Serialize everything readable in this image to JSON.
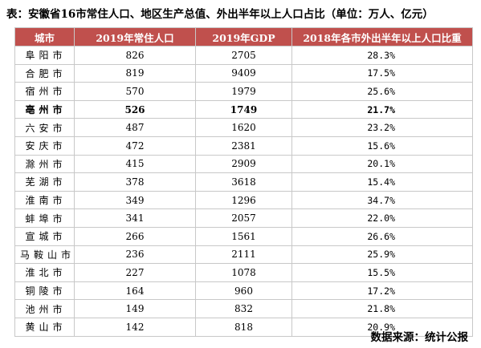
{
  "title": "表：安徽省16市常住人口、地区生产总值、外出半年以上人口占比（单位：万人、亿元）",
  "headers": [
    "城市",
    "2019年常住人口",
    "2019年GDP",
    "2018年各市外出半年以上人口比重"
  ],
  "rows": [
    {
      "city": "阜阳市",
      "population": "826",
      "gdp": "2705",
      "ratio": "28.3%"
    },
    {
      "city": "合肥市",
      "population": "819",
      "gdp": "9409",
      "ratio": "17.5%"
    },
    {
      "city": "宿州市",
      "population": "570",
      "gdp": "1979",
      "ratio": "25.6%"
    },
    {
      "city": "亳州市",
      "population": "526",
      "gdp": "1749",
      "ratio": "21.7%"
    },
    {
      "city": "六安市",
      "population": "487",
      "gdp": "1620",
      "ratio": "23.2%"
    },
    {
      "city": "安庆市",
      "population": "472",
      "gdp": "2381",
      "ratio": "15.6%"
    },
    {
      "city": "滁州市",
      "population": "415",
      "gdp": "2909",
      "ratio": "20.1%"
    },
    {
      "city": "芜湖市",
      "population": "378",
      "gdp": "3618",
      "ratio": "15.4%"
    },
    {
      "city": "淮南市",
      "population": "349",
      "gdp": "1296",
      "ratio": "34.7%"
    },
    {
      "city": "蚌埠市",
      "population": "341",
      "gdp": "2057",
      "ratio": "22.0%"
    },
    {
      "city": "宣城市",
      "population": "266",
      "gdp": "1561",
      "ratio": "26.6%"
    },
    {
      "city": "马鞍山市",
      "population": "236",
      "gdp": "2111",
      "ratio": "25.9%"
    },
    {
      "city": "淮北市",
      "population": "227",
      "gdp": "1078",
      "ratio": "15.5%"
    },
    {
      "city": "铜陵市",
      "population": "164",
      "gdp": "960",
      "ratio": "17.2%"
    },
    {
      "city": "池州市",
      "population": "149",
      "gdp": "832",
      "ratio": "21.8%"
    },
    {
      "city": "黄山市",
      "population": "142",
      "gdp": "818",
      "ratio": "20.9%"
    }
  ],
  "highlight_row_index": 3,
  "header_color": "#c0504d",
  "source": "数据来源：统计公报"
}
